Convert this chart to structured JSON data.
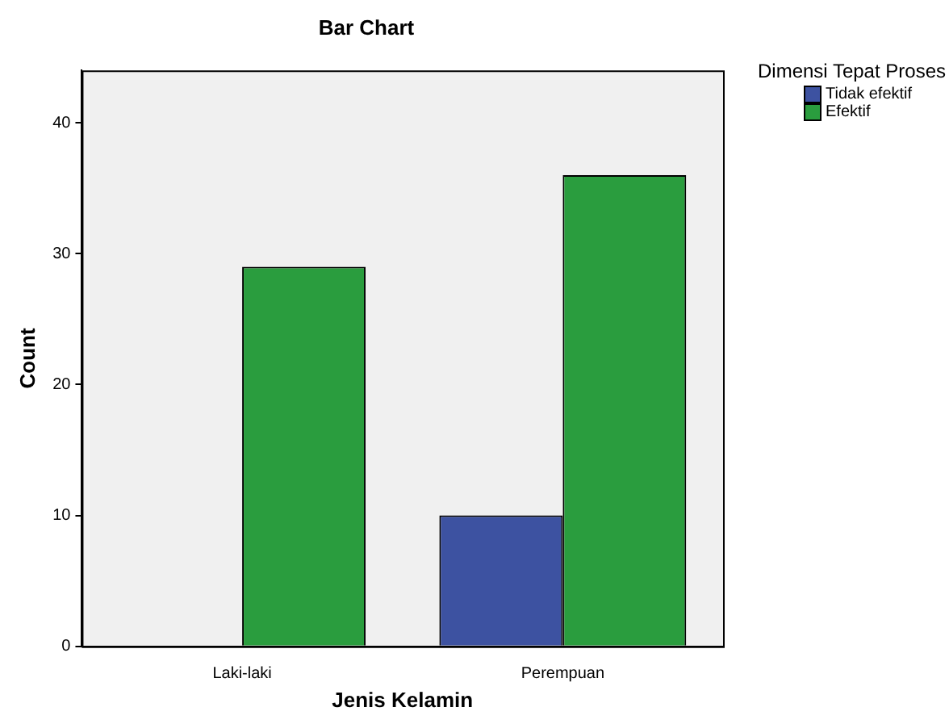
{
  "chart_data": {
    "type": "bar",
    "title": "Bar Chart",
    "xlabel": "Jenis Kelamin",
    "ylabel": "Count",
    "legend_title": "Dimensi Tepat Proses",
    "categories": [
      "Laki-laki",
      "Perempuan"
    ],
    "series": [
      {
        "name": "Tidak efektif",
        "color": "#3d52a1",
        "values": [
          0,
          10
        ]
      },
      {
        "name": "Efektif",
        "color": "#2a9d3e",
        "values": [
          29,
          36
        ]
      }
    ],
    "ylim": [
      0,
      44
    ],
    "yticks": [
      0,
      10,
      20,
      30,
      40
    ],
    "grid": false,
    "legend": "right"
  }
}
